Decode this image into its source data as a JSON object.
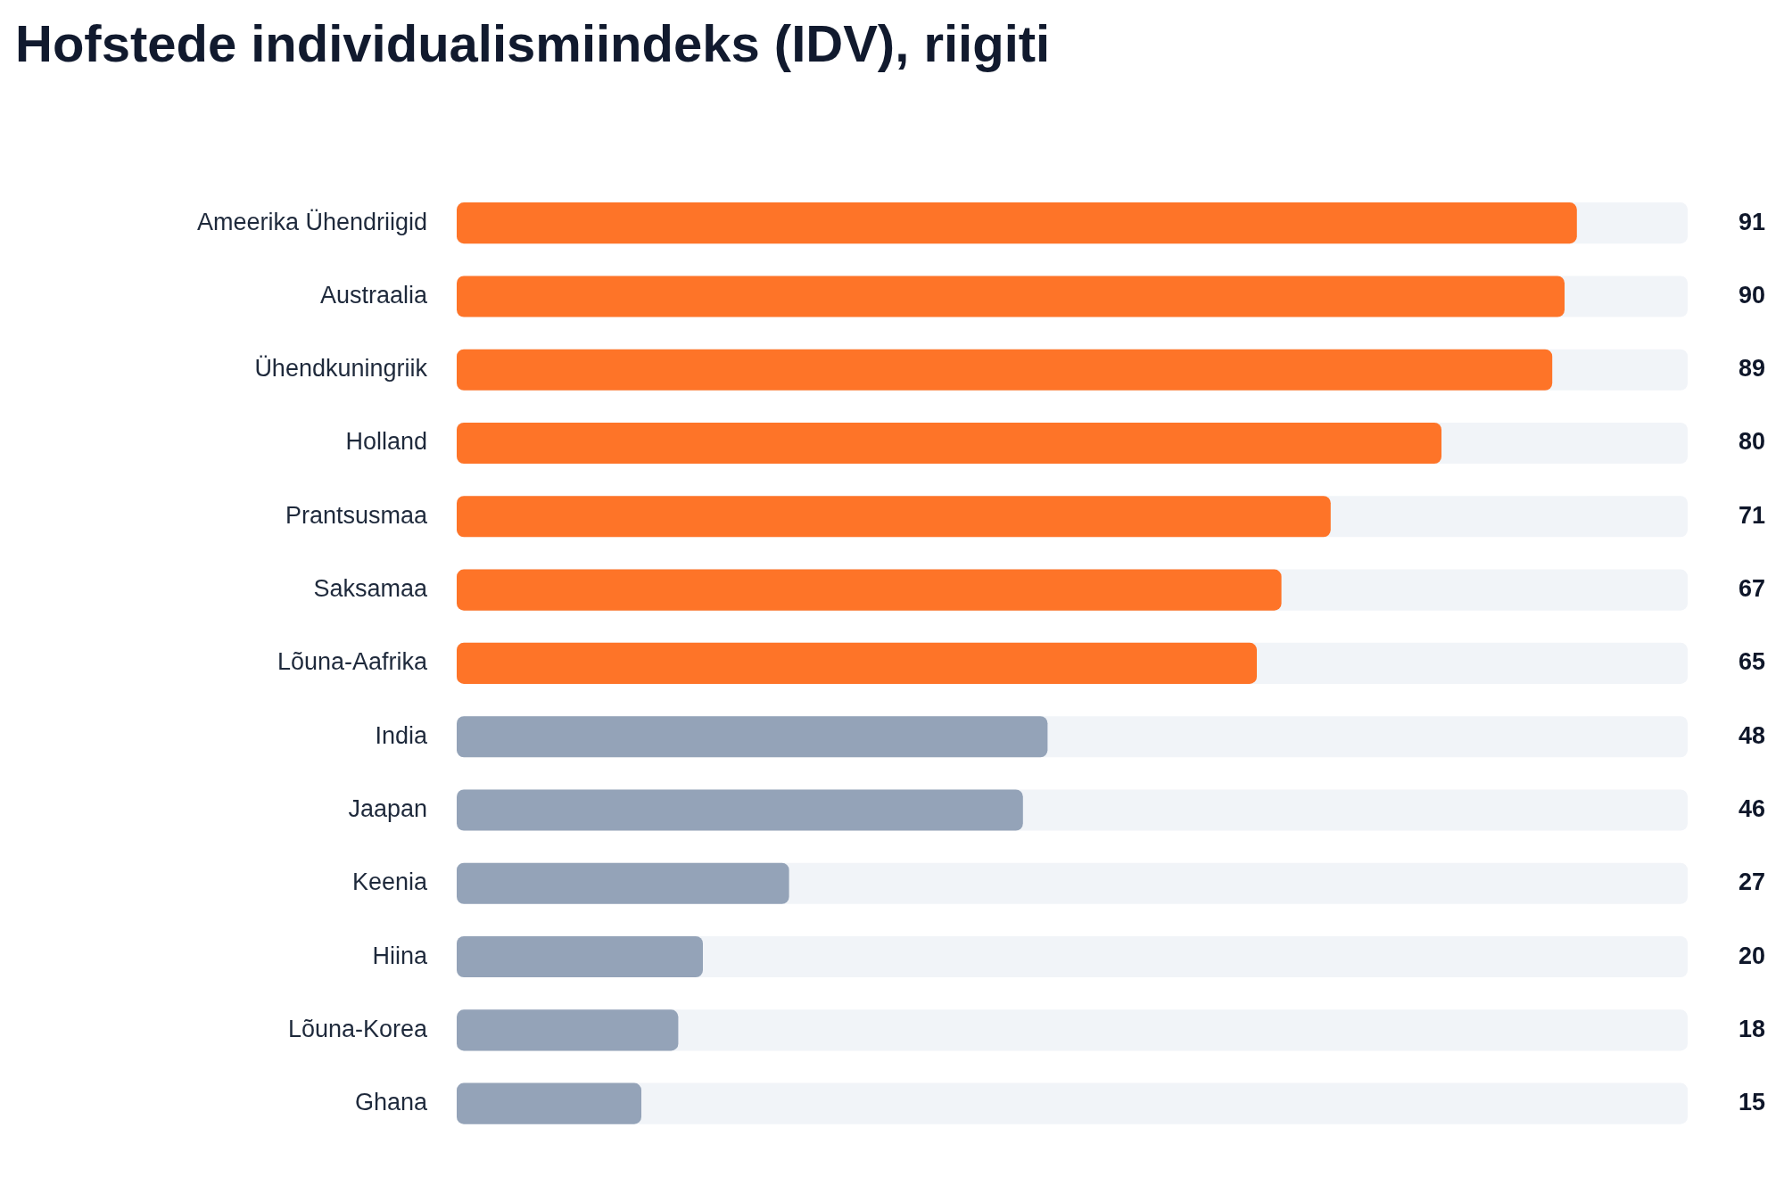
{
  "chart_data": {
    "type": "bar",
    "orientation": "horizontal",
    "title": "Hofstede individualismiindeks (IDV), riigiti",
    "categories": [
      "Ameerika Ühendriigid",
      "Austraalia",
      "Ühendkuningriik",
      "Holland",
      "Prantsusmaa",
      "Saksamaa",
      "Lõuna-Aafrika",
      "India",
      "Jaapan",
      "Keenia",
      "Hiina",
      "Lõuna-Korea",
      "Ghana"
    ],
    "values": [
      91,
      90,
      89,
      80,
      71,
      67,
      65,
      48,
      46,
      27,
      20,
      18,
      15
    ],
    "colors": [
      "#fe7428",
      "#fe7428",
      "#fe7428",
      "#fe7428",
      "#fe7428",
      "#fe7428",
      "#fe7428",
      "#94a3b8",
      "#94a3b8",
      "#94a3b8",
      "#94a3b8",
      "#94a3b8",
      "#94a3b8"
    ],
    "xlim": [
      0,
      100
    ],
    "data_labels": true,
    "tick_labels": "y"
  }
}
